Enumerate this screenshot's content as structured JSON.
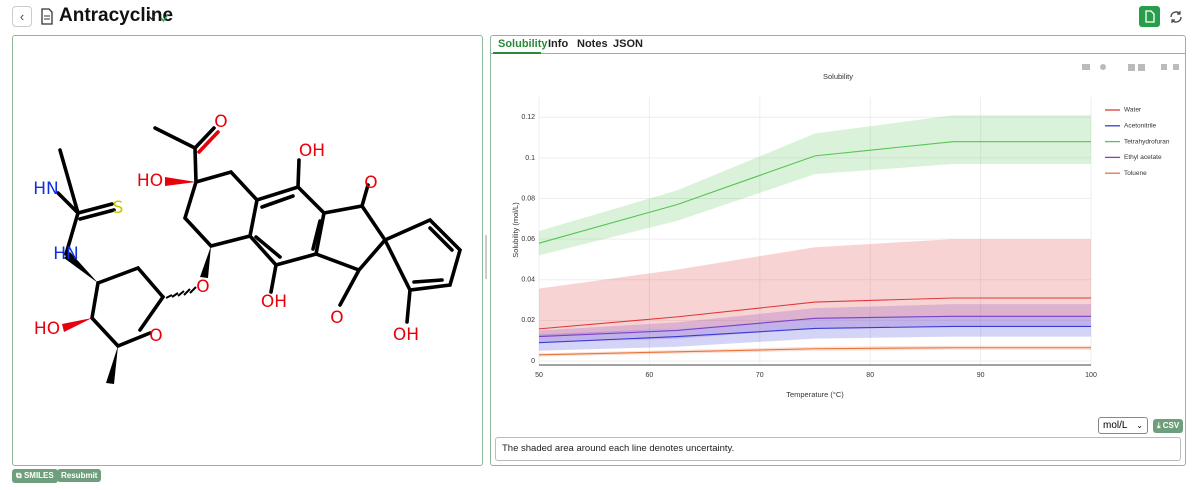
{
  "header": {
    "title": "Antracycline"
  },
  "molecule": {
    "atom_labels": [
      "O",
      "OH",
      "O",
      "HO",
      "HN",
      "S",
      "HN",
      "O",
      "OH",
      "O",
      "HO",
      "O",
      "OH"
    ]
  },
  "tabs": [
    "Solubility",
    "Info",
    "Notes",
    "JSON"
  ],
  "chart_data": {
    "type": "line",
    "title": "Solubility",
    "x_label": "Temperature (°C)",
    "y_label": "Solubility (mol/L)",
    "x": [
      50,
      62.5,
      75,
      87.5,
      100
    ],
    "series": [
      {
        "name": "Water",
        "color": "#e0383a",
        "values": [
          0.0158,
          0.0217,
          0.029,
          0.031,
          0.031
        ],
        "upper": [
          0.0356,
          0.045,
          0.056,
          0.06,
          0.06
        ],
        "lower": [
          0.012,
          0.016,
          0.021,
          0.022,
          0.022
        ]
      },
      {
        "name": "Acetonitrile",
        "color": "#3a3ad6",
        "values": [
          0.009,
          0.012,
          0.016,
          0.017,
          0.017
        ],
        "upper": [
          0.013,
          0.016,
          0.021,
          0.022,
          0.022
        ],
        "lower": [
          0.005,
          0.007,
          0.011,
          0.012,
          0.012
        ]
      },
      {
        "name": "Tetrahydrofuran",
        "color": "#55c455",
        "values": [
          0.058,
          0.077,
          0.101,
          0.108,
          0.108
        ],
        "upper": [
          0.064,
          0.084,
          0.112,
          0.121,
          0.121
        ],
        "lower": [
          0.052,
          0.069,
          0.092,
          0.097,
          0.097
        ]
      },
      {
        "name": "Ethyl acetate",
        "color": "#8040c0",
        "values": [
          0.012,
          0.015,
          0.021,
          0.022,
          0.022
        ],
        "upper": [
          0.015,
          0.019,
          0.026,
          0.028,
          0.028
        ],
        "lower": [
          0.009,
          0.011,
          0.016,
          0.017,
          0.017
        ]
      },
      {
        "name": "Toluene",
        "color": "#e8743b",
        "values": [
          0.003,
          0.0045,
          0.006,
          0.0065,
          0.0065
        ],
        "upper": [
          0.0038,
          0.0054,
          0.007,
          0.0075,
          0.0075
        ],
        "lower": [
          0.0022,
          0.0036,
          0.005,
          0.0055,
          0.0055
        ]
      }
    ],
    "xlim": [
      50,
      100
    ],
    "xticks": [
      50,
      60,
      70,
      80,
      90,
      100
    ],
    "ylim": [
      -0.002,
      0.13
    ],
    "yticks": [
      0,
      0.02,
      0.04,
      0.06,
      0.08,
      0.1,
      0.12
    ],
    "grid": true,
    "legend": "right",
    "band_opacity": 0.22
  },
  "controls": {
    "unit": "mol/L",
    "csv": "CSV"
  },
  "note": "The shaded area around each line denotes uncertainty.",
  "footer_buttons": [
    "SMILES",
    "Resubmit"
  ]
}
